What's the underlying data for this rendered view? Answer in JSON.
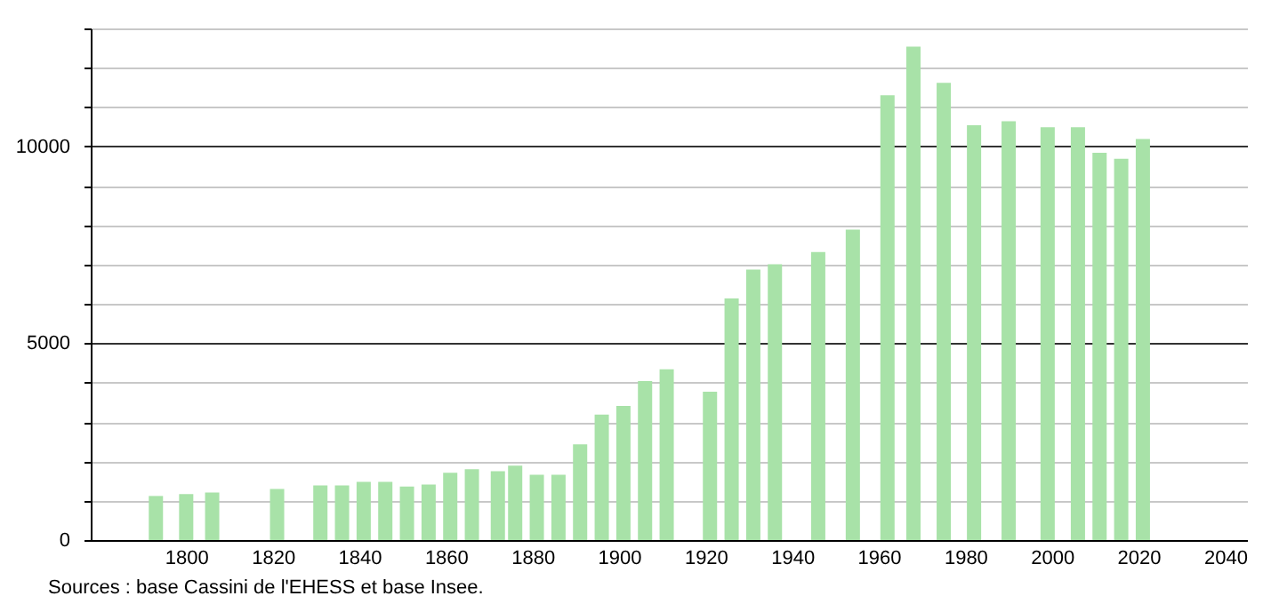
{
  "chart_data": {
    "type": "bar",
    "x": [
      1793,
      1800,
      1806,
      1821,
      1831,
      1836,
      1841,
      1846,
      1851,
      1856,
      1861,
      1866,
      1872,
      1876,
      1881,
      1886,
      1891,
      1896,
      1901,
      1906,
      1911,
      1921,
      1926,
      1931,
      1936,
      1946,
      1954,
      1962,
      1968,
      1975,
      1982,
      1990,
      1999,
      2006,
      2011,
      2016,
      2021
    ],
    "values": [
      1120,
      1170,
      1210,
      1300,
      1390,
      1390,
      1480,
      1480,
      1360,
      1410,
      1710,
      1800,
      1750,
      1890,
      1660,
      1660,
      2430,
      3190,
      3410,
      4040,
      4340,
      3770,
      6140,
      6870,
      7010,
      7320,
      7890,
      11300,
      12540,
      11620,
      10540,
      10640,
      10490,
      10490,
      9840,
      9690,
      10190
    ],
    "color": "#a8e2a8",
    "xlim": [
      1780,
      2043
    ],
    "xticks": [
      1800,
      1820,
      1840,
      1860,
      1880,
      1900,
      1920,
      1940,
      1960,
      1980,
      2000,
      2020,
      2040
    ],
    "ylim": [
      0,
      13000
    ],
    "yticks": [
      0,
      {
        "value": 1000,
        "label": null
      },
      {
        "value": 2000,
        "label": null
      },
      {
        "value": 3000,
        "label": null
      },
      {
        "value": 4000,
        "label": null
      },
      5000,
      {
        "value": 6000,
        "label": null
      },
      {
        "value": 7000,
        "label": null
      },
      {
        "value": 8000,
        "label": null
      },
      {
        "value": 9000,
        "label": null
      },
      10000,
      {
        "value": 11000,
        "label": null
      },
      {
        "value": 12000,
        "label": null
      },
      {
        "value": 13000,
        "label": null
      }
    ],
    "grid": "y",
    "annotations": [
      "Sources : base Cassini de l'EHESS et base Insee."
    ]
  }
}
